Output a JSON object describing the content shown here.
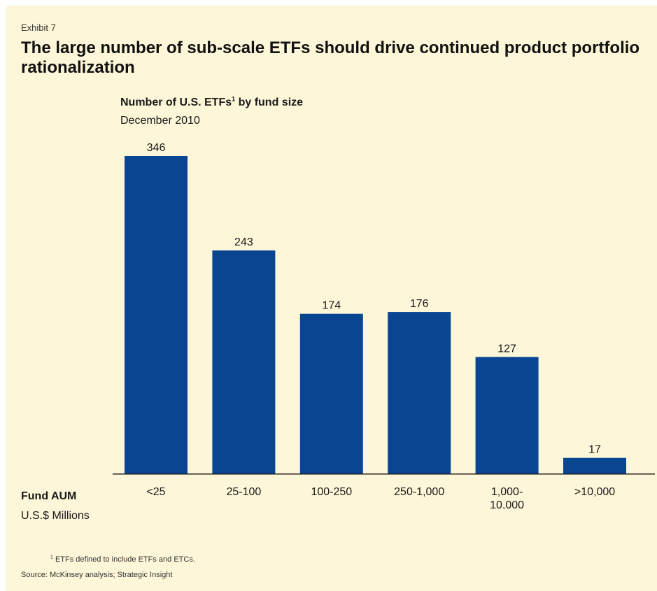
{
  "exhibit_label": "Exhibit 7",
  "headline": "The large number of sub-scale ETFs should drive continued product portfolio rationalization",
  "footnote": {
    "marker": "1",
    "text": "ETFs defined to include ETFs and ETCs."
  },
  "source": "Source: McKinsey analysis; Strategic Insight",
  "chart_data": {
    "type": "bar",
    "title": "Number of U.S. ETFs",
    "title_footnote_marker": "1",
    "title_suffix": " by fund size",
    "subtitle": "December 2010",
    "xlabel": "Fund AUM",
    "xlabel_units": "U.S.$ Millions",
    "ylabel": "",
    "categories": [
      "<25",
      "25-100",
      "100-250",
      "250-1,000",
      "1,000-\n10,000",
      ">10,000"
    ],
    "values": [
      346,
      243,
      174,
      176,
      127,
      17
    ],
    "value_labels": [
      "346",
      "243",
      "174",
      "176",
      "127",
      "17"
    ],
    "ylim": [
      0,
      346
    ],
    "grid": false,
    "legend": "none",
    "bar_color": "#0a4592"
  }
}
